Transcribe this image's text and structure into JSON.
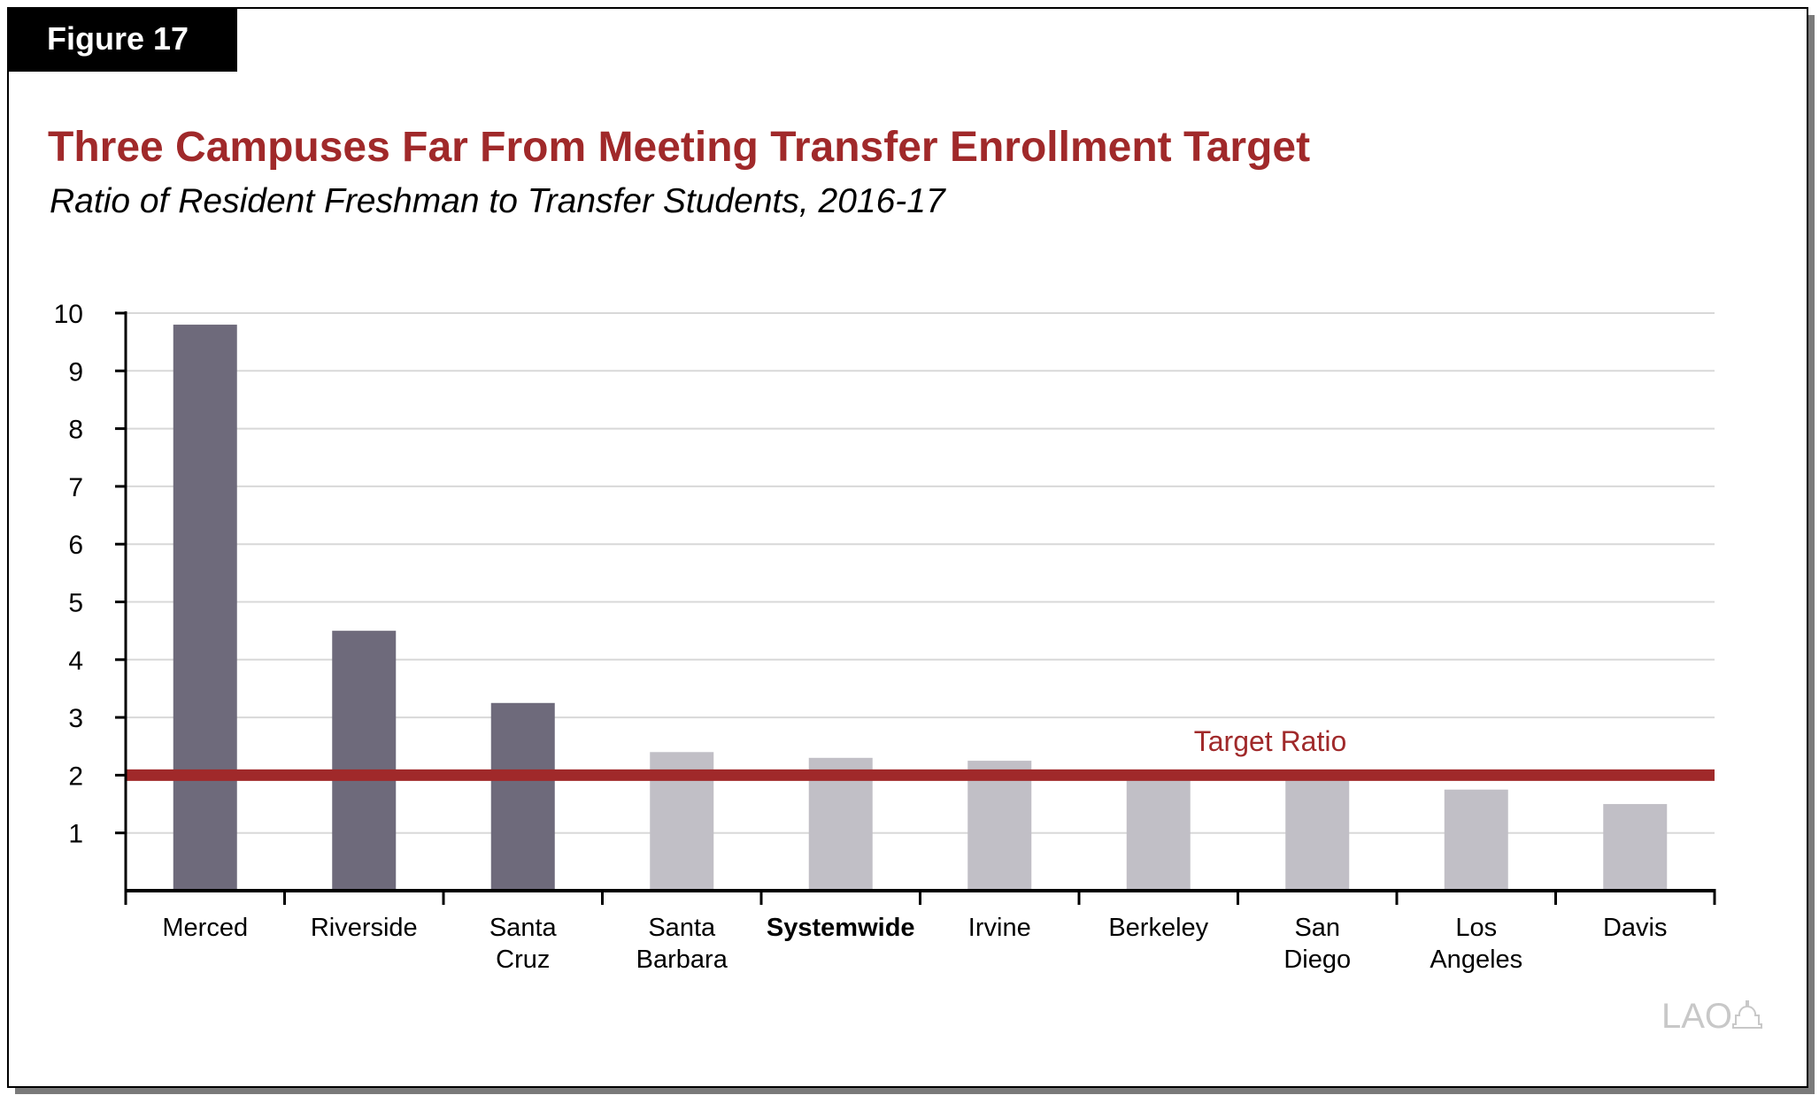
{
  "figure_label": "Figure 17",
  "logo_text": "LAO",
  "colors": {
    "title": "#a0292a",
    "highlight_bar": "#6e6a7b",
    "other_bar": "#c1bfc6",
    "target_line": "#a0292a",
    "grid": "#d8d8d8"
  },
  "chart_data": {
    "type": "bar",
    "title": "Three Campuses Far From Meeting Transfer Enrollment Target",
    "subtitle": "Ratio of Resident Freshman to Transfer Students, 2016-17",
    "xlabel": "",
    "ylabel": "",
    "ylim": [
      0,
      10
    ],
    "yticks": [
      1,
      2,
      3,
      4,
      5,
      6,
      7,
      8,
      9,
      10
    ],
    "grid": true,
    "categories": [
      [
        "Merced"
      ],
      [
        "Riverside"
      ],
      [
        "Santa",
        "Cruz"
      ],
      [
        "Santa",
        "Barbara"
      ],
      [
        "Systemwide"
      ],
      [
        "Irvine"
      ],
      [
        "Berkeley"
      ],
      [
        "San",
        "Diego"
      ],
      [
        "Los",
        "Angeles"
      ],
      [
        "Davis"
      ]
    ],
    "bold_categories": [
      "Systemwide"
    ],
    "values": [
      9.8,
      4.5,
      3.25,
      2.4,
      2.3,
      2.25,
      1.95,
      1.95,
      1.75,
      1.5
    ],
    "highlighted": [
      true,
      true,
      true,
      false,
      false,
      false,
      false,
      false,
      false,
      false
    ],
    "reference_line": {
      "value": 2,
      "label": "Target Ratio"
    }
  }
}
